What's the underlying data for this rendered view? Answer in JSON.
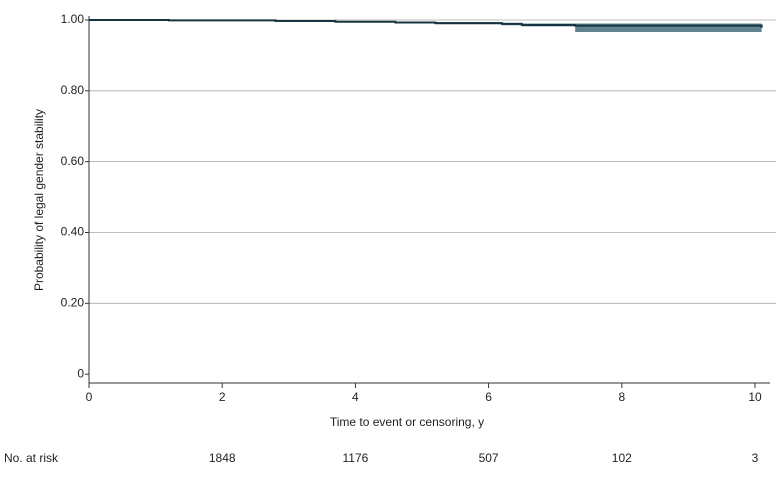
{
  "chart_data": {
    "type": "step",
    "y_label": "Probability of legal gender stability",
    "x_label": "Time to event or censoring, y",
    "x": [
      0,
      1.2,
      2.8,
      3.7,
      4.6,
      5.2,
      6.2,
      6.5,
      7.3,
      10.1
    ],
    "values": [
      1.0,
      0.999,
      0.997,
      0.995,
      0.993,
      0.991,
      0.989,
      0.986,
      0.984,
      0.978
    ],
    "lower": [
      1.0,
      0.998,
      0.995,
      0.993,
      0.99,
      0.988,
      0.985,
      0.982,
      0.966,
      0.966
    ],
    "upper": [
      1.0,
      1.0,
      0.999,
      0.997,
      0.995,
      0.994,
      0.992,
      0.99,
      0.99,
      0.99
    ],
    "color": "#163540",
    "band_color": "#5f8490",
    "xlim": [
      0,
      10.1
    ],
    "xticks": [
      0,
      2,
      4,
      6,
      8,
      10
    ],
    "ylim": [
      -0.025,
      1.0
    ],
    "yticks": [
      0,
      {
        "value": 0.2,
        "label": "0.20"
      },
      {
        "value": 0.4,
        "label": "0.40"
      },
      {
        "value": 0.6,
        "label": "0.60"
      },
      {
        "value": 0.8,
        "label": "0.80"
      },
      {
        "value": 1.0,
        "label": "1.00"
      }
    ],
    "grid": true,
    "at_risk": {
      "label": "No. at risk",
      "x": [
        2,
        4,
        6,
        8,
        10
      ],
      "values": [
        1848,
        1176,
        507,
        102,
        3
      ]
    }
  }
}
